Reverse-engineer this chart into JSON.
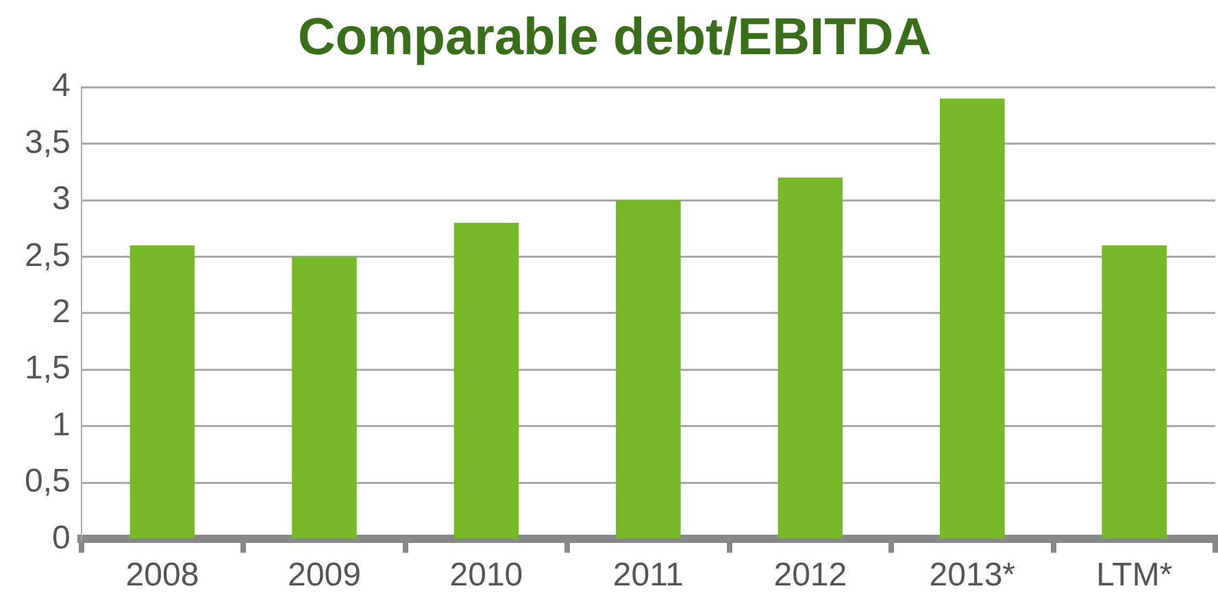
{
  "chart_data": {
    "type": "bar",
    "title": "Comparable debt/EBITDA",
    "categories": [
      "2008",
      "2009",
      "2010",
      "2011",
      "2012",
      "2013*",
      "LTM*"
    ],
    "values": [
      2.6,
      2.5,
      2.8,
      3.0,
      3.2,
      3.9,
      2.6
    ],
    "color": "#76b82a",
    "ylim": [
      0,
      4
    ],
    "yticks": [
      0,
      {
        "value": 0.5,
        "label": "0,5"
      },
      1,
      {
        "value": 1.5,
        "label": "1,5"
      },
      2,
      {
        "value": 2.5,
        "label": "2,5"
      },
      3,
      {
        "value": 3.5,
        "label": "3,5"
      },
      4
    ],
    "grid": "y"
  }
}
